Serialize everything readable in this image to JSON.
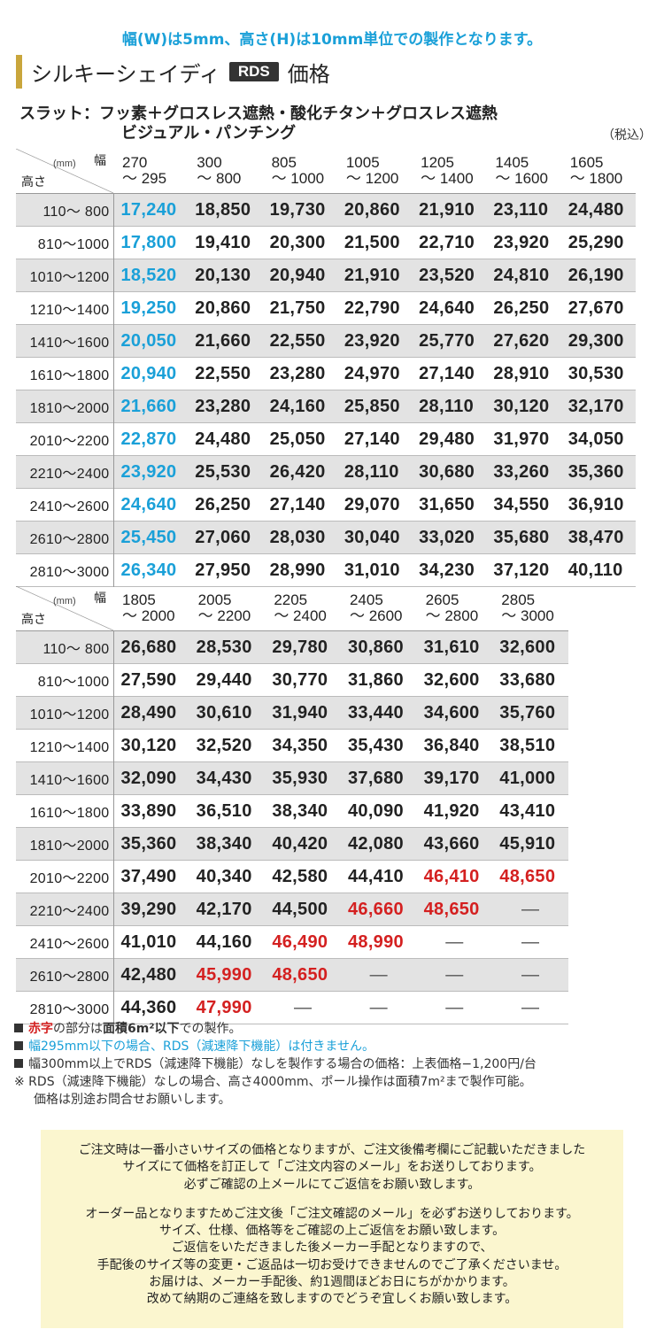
{
  "notice": "幅(W)は5mm、高さ(H)は10mm単位での製作となります。",
  "title": {
    "prefix": "シルキーシェイディ",
    "badge": "RDS",
    "suffix": "価格"
  },
  "slat": {
    "line1": "スラット：フッ素＋グロスレス遮熱・酸化チタン＋グロスレス遮熱",
    "line2": "ビジュアル・パンチング"
  },
  "tax": "（税込）",
  "table_header": {
    "mm": "(mm)",
    "width": "幅",
    "height": "高さ"
  },
  "rows": [
    "110～ 800",
    "810～1000",
    "1010～1200",
    "1210～1400",
    "1410～1600",
    "1610～1800",
    "1810～2000",
    "2010～2200",
    "2210～2400",
    "2410～2600",
    "2610～2800",
    "2810～3000"
  ],
  "table1": {
    "cols": [
      [
        "270",
        "～ 295"
      ],
      [
        "300",
        "～ 800"
      ],
      [
        "805",
        "～ 1000"
      ],
      [
        "1005",
        "～ 1200"
      ],
      [
        "1205",
        "～ 1400"
      ],
      [
        "1405",
        "～ 1600"
      ],
      [
        "1605",
        "～ 1800"
      ]
    ],
    "values": [
      [
        "17,240",
        "18,850",
        "19,730",
        "20,860",
        "21,910",
        "23,110",
        "24,480"
      ],
      [
        "17,800",
        "19,410",
        "20,300",
        "21,500",
        "22,710",
        "23,920",
        "25,290"
      ],
      [
        "18,520",
        "20,130",
        "20,940",
        "21,910",
        "23,520",
        "24,810",
        "26,190"
      ],
      [
        "19,250",
        "20,860",
        "21,750",
        "22,790",
        "24,640",
        "26,250",
        "27,670"
      ],
      [
        "20,050",
        "21,660",
        "22,550",
        "23,920",
        "25,770",
        "27,620",
        "29,300"
      ],
      [
        "20,940",
        "22,550",
        "23,280",
        "24,970",
        "27,140",
        "28,910",
        "30,530"
      ],
      [
        "21,660",
        "23,280",
        "24,160",
        "25,850",
        "28,110",
        "30,120",
        "32,170"
      ],
      [
        "22,870",
        "24,480",
        "25,050",
        "27,140",
        "29,480",
        "31,970",
        "34,050"
      ],
      [
        "23,920",
        "25,530",
        "26,420",
        "28,110",
        "30,680",
        "33,260",
        "35,360"
      ],
      [
        "24,640",
        "26,250",
        "27,140",
        "29,070",
        "31,650",
        "34,550",
        "36,910"
      ],
      [
        "25,450",
        "27,060",
        "28,030",
        "30,040",
        "33,020",
        "35,680",
        "38,470"
      ],
      [
        "26,340",
        "27,950",
        "28,990",
        "31,010",
        "34,230",
        "37,120",
        "40,110"
      ]
    ]
  },
  "table2": {
    "cols": [
      [
        "1805",
        "～ 2000"
      ],
      [
        "2005",
        "～ 2200"
      ],
      [
        "2205",
        "～ 2400"
      ],
      [
        "2405",
        "～ 2600"
      ],
      [
        "2605",
        "～ 2800"
      ],
      [
        "2805",
        "～ 3000"
      ]
    ],
    "values": [
      [
        "26,680",
        "28,530",
        "29,780",
        "30,860",
        "31,610",
        "32,600"
      ],
      [
        "27,590",
        "29,440",
        "30,770",
        "31,860",
        "32,600",
        "33,680"
      ],
      [
        "28,490",
        "30,610",
        "31,940",
        "33,440",
        "34,600",
        "35,760"
      ],
      [
        "30,120",
        "32,520",
        "34,350",
        "35,430",
        "36,840",
        "38,510"
      ],
      [
        "32,090",
        "34,430",
        "35,930",
        "37,680",
        "39,170",
        "41,000"
      ],
      [
        "33,890",
        "36,510",
        "38,340",
        "40,090",
        "41,920",
        "43,410"
      ],
      [
        "35,360",
        "38,340",
        "40,420",
        "42,080",
        "43,660",
        "45,910"
      ],
      [
        "37,490",
        "40,340",
        "42,580",
        "44,410",
        "46,410*",
        "48,650*"
      ],
      [
        "39,290",
        "42,170",
        "44,500",
        "46,660*",
        "48,650*",
        "—"
      ],
      [
        "41,010",
        "44,160",
        "46,490*",
        "48,990*",
        "—",
        "—"
      ],
      [
        "42,480",
        "45,990*",
        "48,650*",
        "—",
        "—",
        "—"
      ],
      [
        "44,360",
        "47,990*",
        "—",
        "—",
        "—",
        "—"
      ]
    ]
  },
  "notes": {
    "n1_red": "赤字",
    "n1_mid": "の部分は",
    "n1_bold": "面積6m²以下",
    "n1_end": "での製作。",
    "n2": "幅295mm以下の場合、RDS（減速降下機能）は付きません。",
    "n3": "幅300mm以上でRDS（減速降下機能）なしを製作する場合の価格：上表価格−1,200円/台",
    "n4": "※ RDS（減速降下機能）なしの場合、高さ4000mm、ポール操作は面積7m²まで製作可能。",
    "n5": "価格は別途お問合せお願いします。"
  },
  "box": {
    "p1": [
      "ご注文時は一番小さいサイズの価格となりますが、ご注文後備考欄にご記載いただきました",
      "サイズにて価格を訂正して「ご注文内容のメール」をお送りしております。",
      "必ずご確認の上メールにてご返信をお願い致します。"
    ],
    "p2": [
      "オーダー品となりますためご注文後「ご注文確認のメール」を必ずお送りしております。",
      "サイズ、仕様、価格等をご確認の上ご返信をお願い致します。",
      "ご返信をいただきました後メーカー手配となりますので、",
      "手配後のサイズ等の変更・ご返品は一切お受けできませんのでご了承くださいませ。",
      "お届けは、メーカー手配後、約1週間ほどお日にちがかかります。",
      "改めて納期のご連絡を致しますのでどうぞ宜しくお願い致します。"
    ]
  }
}
